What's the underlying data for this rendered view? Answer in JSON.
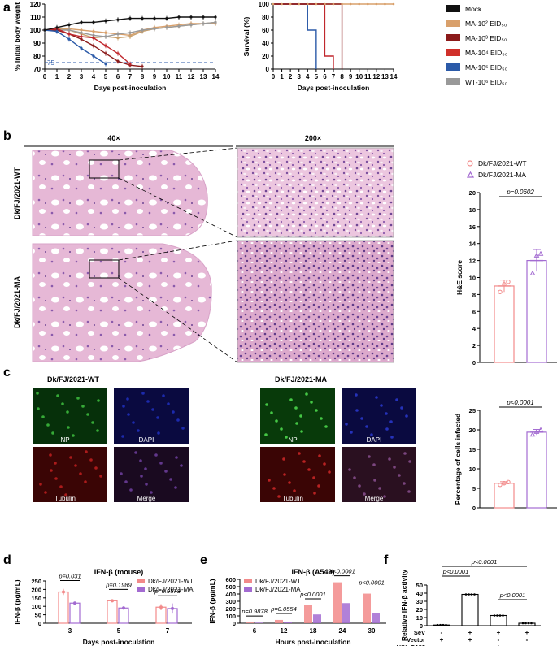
{
  "panels": {
    "a": "a",
    "b": "b",
    "c": "c",
    "d": "d",
    "e": "e",
    "f": "f"
  },
  "chart_data": [
    {
      "id": "weight",
      "type": "line",
      "title": "",
      "xlabel": "Days post-inoculation",
      "ylabel": "% Initial body weight",
      "xlim": [
        0,
        14
      ],
      "ylim": [
        70,
        120
      ],
      "yticks": [
        70,
        80,
        90,
        100,
        110,
        120
      ],
      "xticks": [
        0,
        1,
        2,
        3,
        4,
        5,
        6,
        7,
        8,
        9,
        10,
        11,
        12,
        13,
        14
      ],
      "refline": {
        "value": 75,
        "label": "75"
      },
      "series": [
        {
          "name": "Mock",
          "color": "#111111",
          "x": [
            0,
            1,
            2,
            3,
            4,
            5,
            6,
            7,
            8,
            9,
            10,
            11,
            12,
            13,
            14
          ],
          "y": [
            100,
            102,
            104,
            106,
            106,
            107,
            108,
            109,
            109,
            109,
            109,
            110,
            110,
            110,
            110
          ]
        },
        {
          "name": "MA-10^2 EID50",
          "color": "#d9a06b",
          "x": [
            0,
            1,
            2,
            3,
            4,
            5,
            6,
            7,
            8,
            9,
            10,
            11,
            12,
            13,
            14
          ],
          "y": [
            100,
            101,
            101,
            100,
            99,
            98,
            97,
            96,
            100,
            102,
            103,
            104,
            105,
            105,
            105
          ]
        },
        {
          "name": "MA-10^3 EID50",
          "color": "#c9a06b",
          "x": [
            0,
            1,
            2,
            3,
            4,
            5,
            6,
            7,
            8,
            9,
            10,
            11,
            12,
            13,
            14
          ],
          "y": [
            100,
            101,
            100,
            97,
            94,
            95,
            94,
            95,
            99,
            101,
            102,
            103,
            104,
            105,
            106
          ]
        },
        {
          "name": "MA-10^4 EID50",
          "color": "#c0272d",
          "x": [
            0,
            1,
            2,
            3,
            4,
            5,
            6,
            7
          ],
          "y": [
            100,
            101,
            97,
            95,
            94,
            88,
            82,
            74
          ]
        },
        {
          "name": "MA-10^5 EID50",
          "color": "#2b5aa8",
          "x": [
            0,
            1,
            2,
            3,
            4,
            5
          ],
          "y": [
            100,
            99,
            93,
            86,
            80,
            74
          ]
        },
        {
          "name": "WT-10^6 EID50",
          "color": "#999999",
          "x": [
            0,
            1,
            2,
            3,
            4,
            5,
            6,
            7,
            8,
            9,
            10,
            11,
            12,
            13,
            14
          ],
          "y": [
            100,
            100,
            100,
            98,
            96,
            95,
            97,
            98,
            100,
            101,
            102,
            103,
            104,
            105,
            106
          ]
        }
      ],
      "maroon": {
        "color": "#8b1a1a",
        "x": [
          0,
          1,
          2,
          3,
          4,
          5,
          6,
          7,
          8
        ],
        "y": [
          100,
          100,
          97,
          93,
          88,
          82,
          76,
          73,
          72
        ]
      }
    },
    {
      "id": "survival",
      "type": "line",
      "xlabel": "Days post-inoculation",
      "ylabel": "Survival (%)",
      "xlim": [
        0,
        14
      ],
      "ylim": [
        0,
        100
      ],
      "yticks": [
        0,
        20,
        40,
        60,
        80,
        100
      ],
      "xticks": [
        0,
        1,
        2,
        3,
        4,
        5,
        6,
        7,
        8,
        9,
        10,
        11,
        12,
        13,
        14
      ],
      "series": [
        {
          "color": "#d9a06b",
          "steps": [
            [
              0,
              100
            ],
            [
              14,
              100
            ]
          ]
        },
        {
          "color": "#2b5aa8",
          "steps": [
            [
              0,
              100
            ],
            [
              4,
              100
            ],
            [
              4,
              60
            ],
            [
              5,
              60
            ],
            [
              5,
              0
            ]
          ]
        },
        {
          "color": "#c0272d",
          "steps": [
            [
              0,
              100
            ],
            [
              6,
              100
            ],
            [
              6,
              20
            ],
            [
              7,
              20
            ],
            [
              7,
              0
            ]
          ]
        },
        {
          "color": "#8b1a1a",
          "steps": [
            [
              0,
              100
            ],
            [
              8,
              100
            ],
            [
              8,
              0
            ]
          ]
        }
      ]
    },
    {
      "id": "he",
      "type": "bar",
      "ylabel": "H&E score",
      "ylim": [
        0,
        20
      ],
      "yticks": [
        0,
        2,
        4,
        6,
        8,
        10,
        12,
        14,
        16,
        18,
        20
      ],
      "categories": [
        "Dk/FJ/2021-WT",
        "Dk/FJ/2021-MA"
      ],
      "values": [
        9,
        12
      ],
      "errors": [
        0.7,
        1.3
      ],
      "points": [
        [
          8.3,
          9.2,
          9.5
        ],
        [
          10.5,
          12.6,
          12.8
        ]
      ],
      "pval": "p=0.0602"
    },
    {
      "id": "infected",
      "type": "bar",
      "ylabel": "Percentage of cells infected",
      "ylim": [
        0,
        25
      ],
      "yticks": [
        0,
        5,
        10,
        15,
        20,
        25
      ],
      "categories": [
        "Dk/FJ/2021-WT",
        "Dk/FJ/2021-MA"
      ],
      "values": [
        6.3,
        19.4
      ],
      "errors": [
        0.4,
        0.7
      ],
      "points": [
        [
          5.9,
          6.3,
          6.6
        ],
        [
          18.8,
          19.5,
          20.0
        ]
      ],
      "pval": "p<0.0001"
    },
    {
      "id": "ifn_mouse",
      "type": "bar",
      "title": "IFN-β (mouse)",
      "xlabel": "Days post-inoculation",
      "ylabel": "IFN-β (pg/mL)",
      "ylim": [
        0,
        250
      ],
      "yticks": [
        0,
        50,
        100,
        150,
        200,
        250
      ],
      "categories": [
        "3",
        "5",
        "7"
      ],
      "series": [
        {
          "name": "Dk/FJ/2021-WT",
          "color": "#f28a8a",
          "values": [
            185,
            133,
            95
          ],
          "errors": [
            18,
            8,
            18
          ]
        },
        {
          "name": "Dk/FJ/2021-MA",
          "color": "#a36bd1",
          "values": [
            119,
            90,
            87
          ],
          "errors": [
            5,
            10,
            30
          ]
        }
      ],
      "pvals": [
        "p=0.031",
        "p=0.1989",
        "p=0.9578"
      ]
    },
    {
      "id": "ifn_a549",
      "type": "bar",
      "title": "IFN-β (A549)",
      "xlabel": "Hours post-inoculation",
      "ylabel": "IFN-β (pg/mL)",
      "ylim": [
        0,
        600
      ],
      "yticks": [
        0,
        100,
        200,
        300,
        400,
        500,
        600
      ],
      "categories": [
        "6",
        "12",
        "18",
        "24",
        "30"
      ],
      "series": [
        {
          "name": "Dk/FJ/2021-WT",
          "color": "#f28a8a",
          "values": [
            10,
            45,
            245,
            560,
            405
          ],
          "errors": [
            3,
            5,
            10,
            6,
            6
          ]
        },
        {
          "name": "Dk/FJ/2021-MA",
          "color": "#a36bd1",
          "values": [
            8,
            20,
            120,
            275,
            135
          ],
          "errors": [
            2,
            4,
            5,
            6,
            5
          ]
        }
      ],
      "pvals": [
        "p=0.9878",
        "p=0.0554",
        "p<0.0001",
        "p<0.0001",
        "p<0.0001"
      ]
    },
    {
      "id": "relative",
      "type": "bar",
      "ylabel": "Relative IFN-β activity",
      "ylim": [
        0,
        50
      ],
      "yticks": [
        0,
        10,
        20,
        30,
        40,
        50
      ],
      "values": [
        0.8,
        38.5,
        12.5,
        3.0
      ],
      "errors": [
        0.3,
        0.6,
        0.6,
        0.4
      ],
      "pvals": [
        "p<0.0001",
        "p<0.0001",
        "p<0.0001"
      ],
      "rows": [
        {
          "label": "SeV",
          "marks": [
            "-",
            "+",
            "+",
            "+"
          ]
        },
        {
          "label": "Vector",
          "marks": [
            "+",
            "+",
            "-",
            "-"
          ]
        },
        {
          "label": "NS1-G183",
          "marks": [
            "-",
            "-",
            "+",
            "-"
          ]
        },
        {
          "label": "NS1-S183",
          "marks": [
            "-",
            "-",
            "-",
            "+"
          ]
        }
      ]
    }
  ],
  "legend_a": [
    {
      "label": "Mock",
      "color": "#111111"
    },
    {
      "label": "MA-10² EID₅₀",
      "color": "#d9a06b"
    },
    {
      "label": "MA-10³ EID₅₀",
      "color": "#8b1a1a"
    },
    {
      "label": "MA-10⁴ EID₅₀",
      "color": "#d0302a"
    },
    {
      "label": "MA-10⁵ EID₅₀",
      "color": "#2b5aa8"
    },
    {
      "label": "WT-10⁶ EID₅₀",
      "color": "#999999"
    }
  ],
  "histology": {
    "mag_low": "40×",
    "mag_high": "200×",
    "row_labels": [
      "Dk/FJ/2021-WT",
      "Dk/FJ/2021-MA"
    ],
    "legend": [
      "Dk/FJ/2021-WT",
      "Dk/FJ/2021-MA"
    ]
  },
  "confocal": {
    "titles": [
      "Dk/FJ/2021-WT",
      "Dk/FJ/2021-MA"
    ],
    "channels": [
      "NP",
      "DAPI",
      "Tubulin",
      "Merge"
    ]
  },
  "colors": {
    "wt": "#f28a8a",
    "ma": "#a36bd1",
    "he_pink": "#e8a8cc",
    "he_purple": "#7b4f9e"
  }
}
